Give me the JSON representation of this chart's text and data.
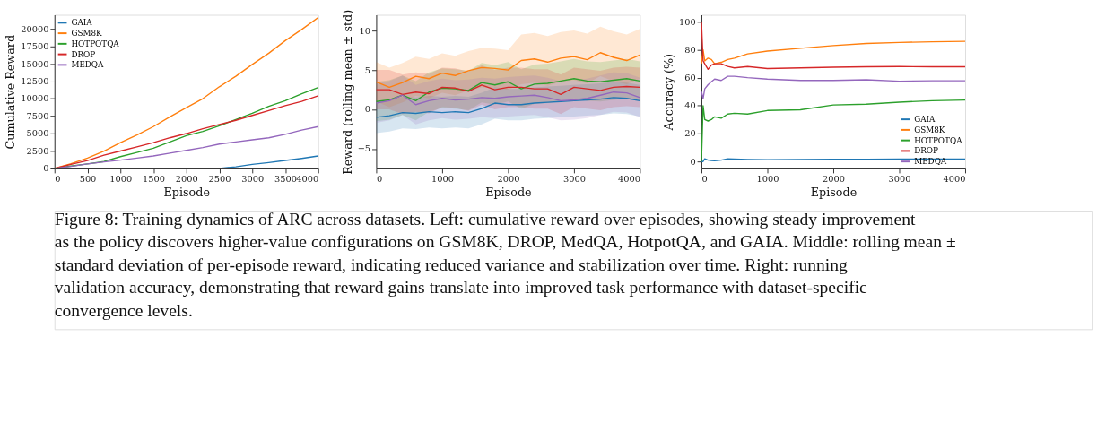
{
  "chart_data": [
    {
      "type": "line",
      "xlabel": "Episode",
      "ylabel": "Cumulative Reward",
      "xlim": [
        0,
        4000
      ],
      "ylim": [
        0,
        22000
      ],
      "xticks": [
        0,
        500,
        1000,
        1500,
        2000,
        2500,
        3000,
        3500,
        4000
      ],
      "yticks": [
        0,
        2500,
        5000,
        7500,
        10000,
        12500,
        15000,
        17500,
        20000
      ],
      "x": [
        0,
        250,
        500,
        750,
        1000,
        1250,
        1500,
        1750,
        2000,
        2250,
        2500,
        2750,
        3000,
        3250,
        3500,
        3750,
        4000
      ],
      "grid": false,
      "legend": "top left",
      "series": [
        {
          "name": "GAIA",
          "color": "#1f77b4",
          "values": [
            null,
            null,
            null,
            null,
            null,
            null,
            null,
            null,
            null,
            null,
            0,
            250,
            600,
            850,
            1150,
            1450,
            1800
          ]
        },
        {
          "name": "GSM8K",
          "color": "#ff7f0e",
          "values": [
            0,
            700,
            1500,
            2500,
            3700,
            4800,
            6000,
            7400,
            8700,
            10000,
            11700,
            13200,
            14900,
            16500,
            18300,
            19900,
            21600
          ]
        },
        {
          "name": "HOTPOTQA",
          "color": "#2ca02c",
          "values": [
            0,
            350,
            650,
            1000,
            1700,
            2300,
            2900,
            3800,
            4700,
            5300,
            6100,
            7000,
            7900,
            8900,
            9700,
            10700,
            11600
          ]
        },
        {
          "name": "DROP",
          "color": "#d62728",
          "values": [
            0,
            600,
            1150,
            1900,
            2500,
            3100,
            3700,
            4400,
            5000,
            5700,
            6300,
            6900,
            7600,
            8300,
            9000,
            9600,
            10400
          ]
        },
        {
          "name": "MEDQA",
          "color": "#9467bd",
          "values": [
            0,
            300,
            650,
            950,
            1200,
            1500,
            1800,
            2200,
            2600,
            3000,
            3500,
            3800,
            4100,
            4400,
            4900,
            5500,
            6000
          ]
        }
      ],
      "annotations": [
        "Figure 8: Training dynamics of ARC across datasets. Left: cumulative reward over episodes, showing steady improvement as the policy discovers higher-value configurations on GSM8K, DROP, MedQA, HotpotQA, and GAIA. Middle: rolling mean ± standard deviation of per-episode reward, indicating reduced variance and stabilization over time. Right: running validation accuracy, demonstrating that reward gains translate into improved task performance with dataset-specific convergence levels."
      ]
    },
    {
      "type": "line",
      "xlabel": "Episode",
      "ylabel": "Reward (rolling mean ± std)",
      "xlim": [
        0,
        4000
      ],
      "ylim": [
        -7.5,
        12
      ],
      "xticks": [
        0,
        1000,
        2000,
        3000,
        4000
      ],
      "yticks": [
        -5,
        0,
        5,
        10
      ],
      "x": [
        0,
        200,
        400,
        600,
        800,
        1000,
        1200,
        1400,
        1600,
        1800,
        2000,
        2200,
        2400,
        2600,
        2800,
        3000,
        3200,
        3400,
        3600,
        3800,
        4000
      ],
      "grid": false,
      "legend": "bottom right",
      "series": [
        {
          "name": "GAIA",
          "color": "#1f77b4",
          "values": [
            -1.0,
            -0.8,
            -0.4,
            -0.5,
            -0.3,
            -0.4,
            -0.3,
            -0.4,
            0.1,
            0.8,
            0.6,
            0.6,
            0.8,
            0.9,
            1.0,
            1.1,
            1.2,
            1.3,
            1.5,
            1.4,
            1.1
          ],
          "lower": [
            -3.0,
            -2.8,
            -2.4,
            -2.5,
            -2.3,
            -2.4,
            -2.3,
            -2.4,
            -1.9,
            -1.2,
            -1.4,
            -1.4,
            -1.2,
            -1.1,
            -1.0,
            -0.9,
            -0.8,
            -0.7,
            -0.5,
            -0.6,
            -0.9
          ],
          "upper": [
            1.0,
            1.2,
            1.6,
            1.5,
            1.7,
            1.6,
            1.7,
            1.6,
            2.1,
            2.8,
            2.6,
            2.6,
            2.8,
            2.9,
            3.0,
            3.1,
            3.2,
            3.3,
            3.5,
            3.4,
            3.1
          ]
        },
        {
          "name": "GSM8K",
          "color": "#ff7f0e",
          "values": [
            3.5,
            2.8,
            3.4,
            4.2,
            3.9,
            4.6,
            4.3,
            4.9,
            5.3,
            5.2,
            5.0,
            6.2,
            6.4,
            6.0,
            6.5,
            6.7,
            6.3,
            7.2,
            6.6,
            6.2,
            6.9
          ],
          "lower": [
            1.0,
            0.3,
            0.9,
            1.7,
            1.4,
            2.1,
            1.8,
            2.4,
            2.8,
            2.7,
            2.5,
            3.2,
            3.4,
            3.0,
            3.5,
            3.7,
            3.3,
            4.2,
            3.6,
            3.2,
            3.9
          ],
          "upper": [
            6.0,
            5.3,
            5.9,
            6.7,
            6.4,
            7.1,
            6.8,
            7.4,
            7.8,
            7.7,
            7.5,
            9.5,
            9.7,
            9.3,
            9.8,
            10.0,
            9.6,
            10.5,
            9.9,
            9.5,
            10.2
          ]
        },
        {
          "name": "HOTPOTQA",
          "color": "#2ca02c",
          "values": [
            1.0,
            1.2,
            1.8,
            1.1,
            2.2,
            2.7,
            2.6,
            2.4,
            3.4,
            3.1,
            3.5,
            2.6,
            3.2,
            3.3,
            3.6,
            3.9,
            3.6,
            3.5,
            3.7,
            3.9,
            3.6
          ],
          "lower": [
            -1.5,
            -1.3,
            -0.7,
            -1.4,
            -0.3,
            0.2,
            0.1,
            -0.1,
            0.9,
            0.6,
            1.0,
            0.1,
            0.7,
            0.8,
            1.1,
            1.4,
            1.1,
            1.0,
            1.2,
            1.4,
            1.1
          ],
          "upper": [
            3.5,
            3.7,
            4.3,
            3.6,
            4.7,
            5.2,
            5.1,
            4.9,
            5.9,
            5.6,
            6.0,
            5.1,
            5.7,
            5.8,
            6.1,
            6.4,
            6.1,
            6.0,
            6.2,
            6.4,
            6.1
          ]
        },
        {
          "name": "DROP",
          "color": "#d62728",
          "values": [
            2.5,
            2.5,
            1.9,
            2.2,
            2.0,
            2.8,
            2.7,
            2.3,
            3.1,
            2.5,
            2.8,
            2.8,
            2.6,
            2.6,
            1.9,
            2.8,
            2.6,
            2.4,
            2.8,
            2.9,
            2.8
          ],
          "lower": [
            0.0,
            0.0,
            -0.6,
            -0.3,
            -0.5,
            0.3,
            0.2,
            -0.2,
            0.6,
            0.0,
            0.3,
            0.3,
            0.1,
            0.1,
            -0.6,
            0.3,
            0.1,
            -0.1,
            0.3,
            0.4,
            0.3
          ],
          "upper": [
            5.0,
            5.0,
            4.4,
            4.7,
            4.5,
            5.3,
            5.2,
            4.8,
            5.6,
            5.0,
            5.3,
            5.3,
            5.1,
            5.1,
            4.4,
            5.3,
            5.1,
            4.9,
            5.3,
            5.4,
            5.3
          ]
        },
        {
          "name": "MEDQA",
          "color": "#9467bd",
          "values": [
            0.8,
            1.1,
            1.8,
            0.6,
            1.1,
            1.4,
            1.2,
            1.3,
            1.5,
            1.4,
            1.6,
            1.7,
            1.8,
            1.5,
            1.1,
            1.2,
            1.4,
            1.8,
            2.2,
            2.1,
            1.5
          ],
          "lower": [
            -1.7,
            -1.4,
            -0.7,
            -1.9,
            -1.4,
            -1.1,
            -1.3,
            -1.2,
            -1.0,
            -1.1,
            -0.9,
            -0.8,
            -0.7,
            -1.0,
            -1.4,
            -1.3,
            -1.1,
            -0.7,
            -0.3,
            -0.4,
            -1.0
          ],
          "upper": [
            3.3,
            3.6,
            4.3,
            3.1,
            3.6,
            3.9,
            3.7,
            3.8,
            4.0,
            3.9,
            4.1,
            4.2,
            4.3,
            4.0,
            3.6,
            3.7,
            3.9,
            4.3,
            4.7,
            4.6,
            4.0
          ]
        }
      ]
    },
    {
      "type": "line",
      "xlabel": "Episode",
      "ylabel": "Accuracy (%)",
      "xlim": [
        0,
        4000
      ],
      "ylim": [
        -5,
        105
      ],
      "xticks": [
        0,
        1000,
        2000,
        3000,
        4000
      ],
      "yticks": [
        0,
        20,
        40,
        60,
        80,
        100
      ],
      "x": [
        0,
        25,
        50,
        100,
        150,
        200,
        300,
        400,
        500,
        700,
        1000,
        1500,
        2000,
        2500,
        3000,
        3500,
        4000
      ],
      "grid": false,
      "legend": "bottom right",
      "series": [
        {
          "name": "GAIA",
          "color": "#1f77b4",
          "values": [
            0,
            0,
            2,
            1,
            0.8,
            0.5,
            1,
            2,
            1.8,
            1.5,
            1.3,
            1.5,
            1.7,
            1.7,
            1.8,
            1.8,
            1.8
          ]
        },
        {
          "name": "GSM8K",
          "color": "#ff7f0e",
          "values": [
            70,
            80,
            72,
            74,
            73,
            70,
            71,
            73,
            74,
            77,
            79,
            81,
            83,
            84.5,
            85.2,
            85.7,
            86
          ]
        },
        {
          "name": "HOTPOTQA",
          "color": "#2ca02c",
          "values": [
            0,
            40,
            30,
            29,
            30,
            32,
            31,
            34,
            34.5,
            34,
            36.5,
            37,
            40.5,
            41,
            42.5,
            43.5,
            44
          ]
        },
        {
          "name": "DROP",
          "color": "#d62728",
          "values": [
            100,
            72,
            70,
            66,
            69,
            70,
            70,
            68,
            67,
            68,
            66.5,
            67,
            67.5,
            67.8,
            68,
            67.8,
            67.8
          ]
        },
        {
          "name": "MEDQA",
          "color": "#9467bd",
          "values": [
            50,
            45,
            52,
            55,
            57,
            59,
            58,
            61,
            61,
            60,
            59,
            58,
            58,
            58.5,
            57.5,
            57.8,
            57.8
          ]
        }
      ]
    }
  ]
}
